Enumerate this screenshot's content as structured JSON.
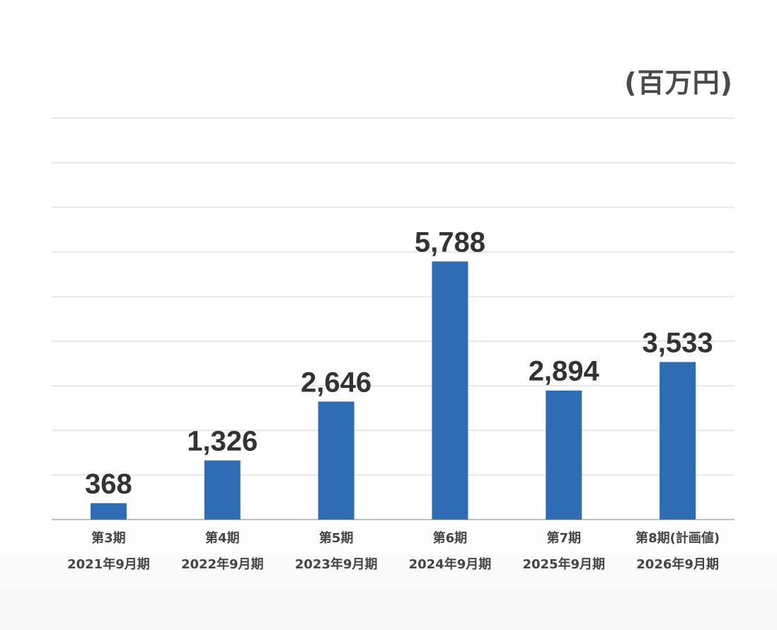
{
  "chart_data": {
    "type": "bar",
    "unit_label": "(百万円)",
    "categories": [
      [
        "第3期",
        "2021年9月期"
      ],
      [
        "第4期",
        "2022年9月期"
      ],
      [
        "第5期",
        "2023年9月期"
      ],
      [
        "第6期",
        "2024年9月期"
      ],
      [
        "第7期",
        "2025年9月期"
      ],
      [
        "第8期(計画値)",
        "2026年9月期"
      ]
    ],
    "values": [
      368,
      1326,
      2646,
      5788,
      2894,
      3533
    ],
    "value_labels": [
      "368",
      "1,326",
      "2,646",
      "5,788",
      "2,894",
      "3,533"
    ],
    "ylim": [
      0,
      9000
    ],
    "grid": true,
    "bar_color": "#2e6db4",
    "grid_color": "#d9d9d9",
    "axis_color": "#bfbfbf",
    "value_label_color": "#333333",
    "category_label_color": "#444444"
  }
}
